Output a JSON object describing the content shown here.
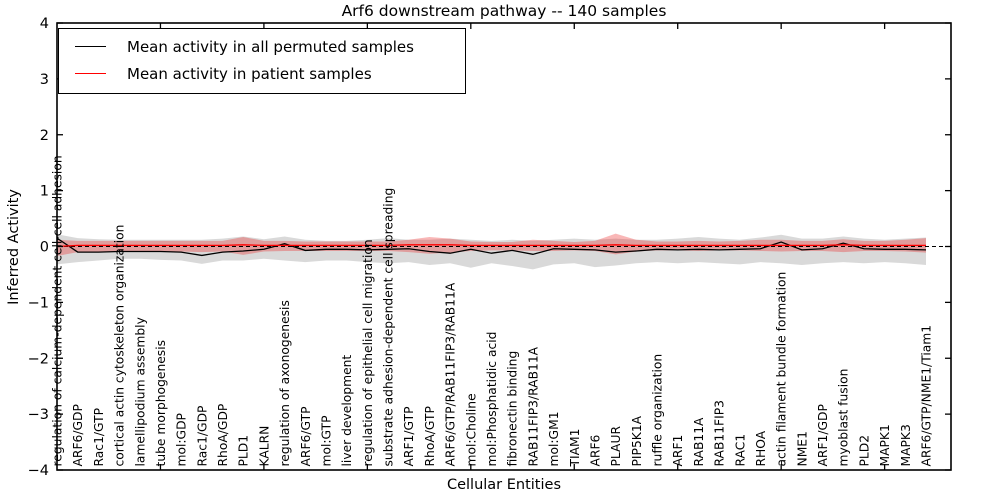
{
  "title": "Arf6 downstream pathway -- 140 samples",
  "axes": {
    "ylabel": "Inferred Activity",
    "xlabel": "Cellular Entities",
    "ylim": [
      -4,
      4
    ],
    "yticks": [
      4,
      3,
      2,
      1,
      0,
      -1,
      -2,
      -3,
      -4
    ]
  },
  "legend": {
    "items": [
      {
        "label": "Mean activity in all permuted samples",
        "color": "#000000"
      },
      {
        "label": "Mean activity in patient samples",
        "color": "#ff0000"
      }
    ]
  },
  "chart_data": {
    "type": "line",
    "title": "Arf6 downstream pathway -- 140 samples",
    "xlabel": "Cellular Entities",
    "ylabel": "Inferred Activity",
    "ylim": [
      -4,
      4
    ],
    "yticks": [
      4,
      3,
      2,
      1,
      0,
      -1,
      -2,
      -3,
      -4
    ],
    "grid": false,
    "zero_line_dashed": true,
    "legend_position": "upper left",
    "categories": [
      "regulation of calcium-dependent cell-cell adhesion",
      "ARF6/GDP",
      "Rac1/GTP",
      "cortical actin cytoskeleton organization",
      "lamellipodium assembly",
      "tube morphogenesis",
      "mol:GDP",
      "Rac1/GDP",
      "RhoA/GDP",
      "PLD1",
      "KALRN",
      "regulation of axonogenesis",
      "ARF6/GTP",
      "mol:GTP",
      "liver development",
      "regulation of epithelial cell migration",
      "substrate adhesion-dependent cell spreading",
      "ARF1/GTP",
      "RhoA/GTP",
      "ARF6/GTP/RAB11FIP3/RAB11A",
      "mol:Choline",
      "mol:Phosphatidic acid",
      "fibronectin binding",
      "RAB11FIP3/RAB11A",
      "mol:GM1",
      "TIAM1",
      "ARF6",
      "PLAUR",
      "PIP5K1A",
      "ruffle organization",
      "ARF1",
      "RAB11A",
      "RAB11FIP3",
      "RAC1",
      "RHOA",
      "actin filament bundle formation",
      "NME1",
      "ARF1/GDP",
      "myoblast fusion",
      "PLD2",
      "MAPK1",
      "MAPK3",
      "ARF6/GTP/NME1/Tiam1"
    ],
    "series": [
      {
        "name": "Mean activity in all permuted samples",
        "color": "#000000",
        "band_color": "rgba(128,128,128,0.30)",
        "values": [
          0.15,
          -0.1,
          -0.1,
          -0.09,
          -0.09,
          -0.09,
          -0.1,
          -0.16,
          -0.1,
          -0.08,
          -0.05,
          0.05,
          -0.07,
          -0.05,
          -0.05,
          -0.06,
          -0.05,
          -0.04,
          -0.09,
          -0.12,
          -0.05,
          -0.12,
          -0.07,
          -0.14,
          -0.04,
          -0.05,
          -0.06,
          -0.1,
          -0.08,
          -0.05,
          -0.06,
          -0.05,
          -0.06,
          -0.05,
          -0.04,
          0.08,
          -0.06,
          -0.04,
          0.06,
          -0.04,
          -0.05,
          -0.05,
          -0.06
        ],
        "band_upper": [
          0.22,
          0.15,
          0.13,
          0.12,
          0.12,
          0.12,
          0.12,
          0.12,
          0.14,
          0.18,
          0.13,
          0.18,
          0.12,
          0.1,
          0.1,
          0.12,
          0.15,
          0.12,
          0.12,
          0.14,
          0.12,
          0.1,
          0.12,
          0.1,
          0.12,
          0.14,
          0.12,
          0.14,
          0.12,
          0.12,
          0.14,
          0.17,
          0.14,
          0.12,
          0.16,
          0.21,
          0.14,
          0.14,
          0.18,
          0.14,
          0.12,
          0.14,
          0.16
        ],
        "band_lower": [
          -0.32,
          -0.28,
          -0.25,
          -0.22,
          -0.22,
          -0.24,
          -0.25,
          -0.31,
          -0.25,
          -0.25,
          -0.22,
          -0.25,
          -0.28,
          -0.25,
          -0.25,
          -0.28,
          -0.3,
          -0.28,
          -0.33,
          -0.3,
          -0.38,
          -0.3,
          -0.35,
          -0.41,
          -0.32,
          -0.3,
          -0.37,
          -0.34,
          -0.3,
          -0.28,
          -0.3,
          -0.28,
          -0.3,
          -0.32,
          -0.28,
          -0.3,
          -0.33,
          -0.3,
          -0.28,
          -0.3,
          -0.28,
          -0.3,
          -0.33
        ]
      },
      {
        "name": "Mean activity in patient samples",
        "color": "#ff0000",
        "band_color": "rgba(235,30,30,0.32)",
        "values": [
          0.0,
          0.02,
          0.02,
          0.02,
          0.02,
          0.02,
          0.02,
          0.02,
          0.02,
          0.03,
          0.02,
          0.02,
          0.02,
          0.02,
          0.02,
          0.02,
          0.02,
          0.03,
          0.03,
          0.03,
          0.02,
          0.02,
          0.02,
          0.02,
          0.02,
          0.02,
          0.02,
          0.03,
          0.02,
          0.02,
          0.02,
          0.02,
          0.02,
          0.02,
          0.02,
          0.02,
          0.02,
          0.02,
          0.03,
          0.02,
          0.02,
          0.02,
          0.02
        ],
        "band_upper": [
          0.12,
          0.1,
          0.1,
          0.1,
          0.1,
          0.1,
          0.1,
          0.1,
          0.1,
          0.17,
          0.1,
          0.1,
          0.09,
          0.09,
          0.09,
          0.09,
          0.09,
          0.12,
          0.17,
          0.14,
          0.09,
          0.08,
          0.08,
          0.12,
          0.1,
          0.08,
          0.1,
          0.23,
          0.12,
          0.09,
          0.09,
          0.1,
          0.09,
          0.1,
          0.12,
          0.12,
          0.1,
          0.1,
          0.13,
          0.1,
          0.1,
          0.12,
          0.15
        ],
        "band_lower": [
          -0.17,
          -0.1,
          -0.09,
          -0.09,
          -0.09,
          -0.09,
          -0.09,
          -0.1,
          -0.09,
          -0.15,
          -0.09,
          -0.08,
          -0.08,
          -0.08,
          -0.08,
          -0.08,
          -0.08,
          -0.1,
          -0.13,
          -0.11,
          -0.08,
          -0.07,
          -0.07,
          -0.08,
          -0.08,
          -0.07,
          -0.08,
          -0.14,
          -0.09,
          -0.07,
          -0.07,
          -0.08,
          -0.07,
          -0.07,
          -0.08,
          -0.09,
          -0.08,
          -0.08,
          -0.1,
          -0.08,
          -0.08,
          -0.09,
          -0.11
        ]
      }
    ]
  }
}
